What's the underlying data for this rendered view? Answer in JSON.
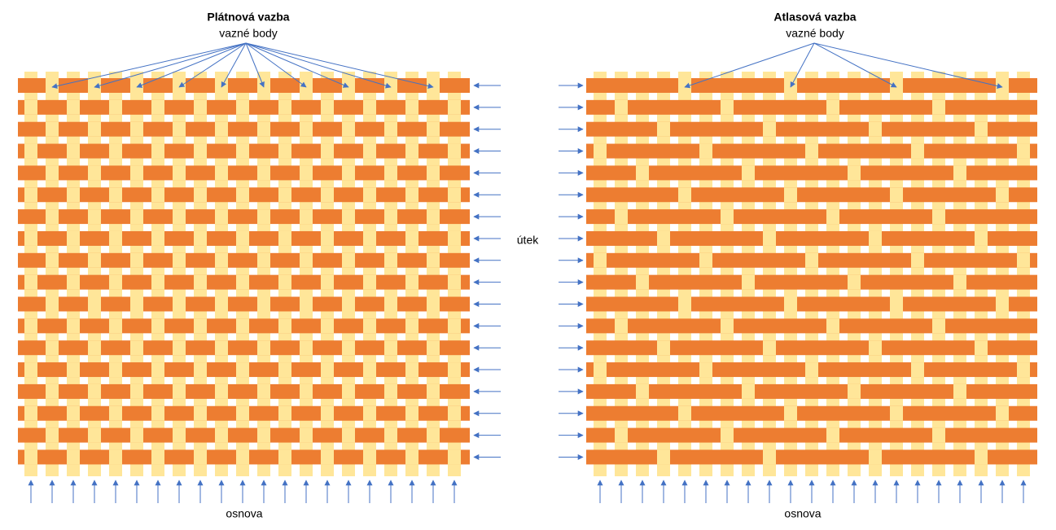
{
  "left": {
    "title": "Plátnová vazba",
    "subtitle": "vazné body",
    "bottom_label": "osnova"
  },
  "middle_label": "útek",
  "right": {
    "title": "Atlasová vazba",
    "subtitle": "vazné body",
    "bottom_label": "osnova"
  }
}
